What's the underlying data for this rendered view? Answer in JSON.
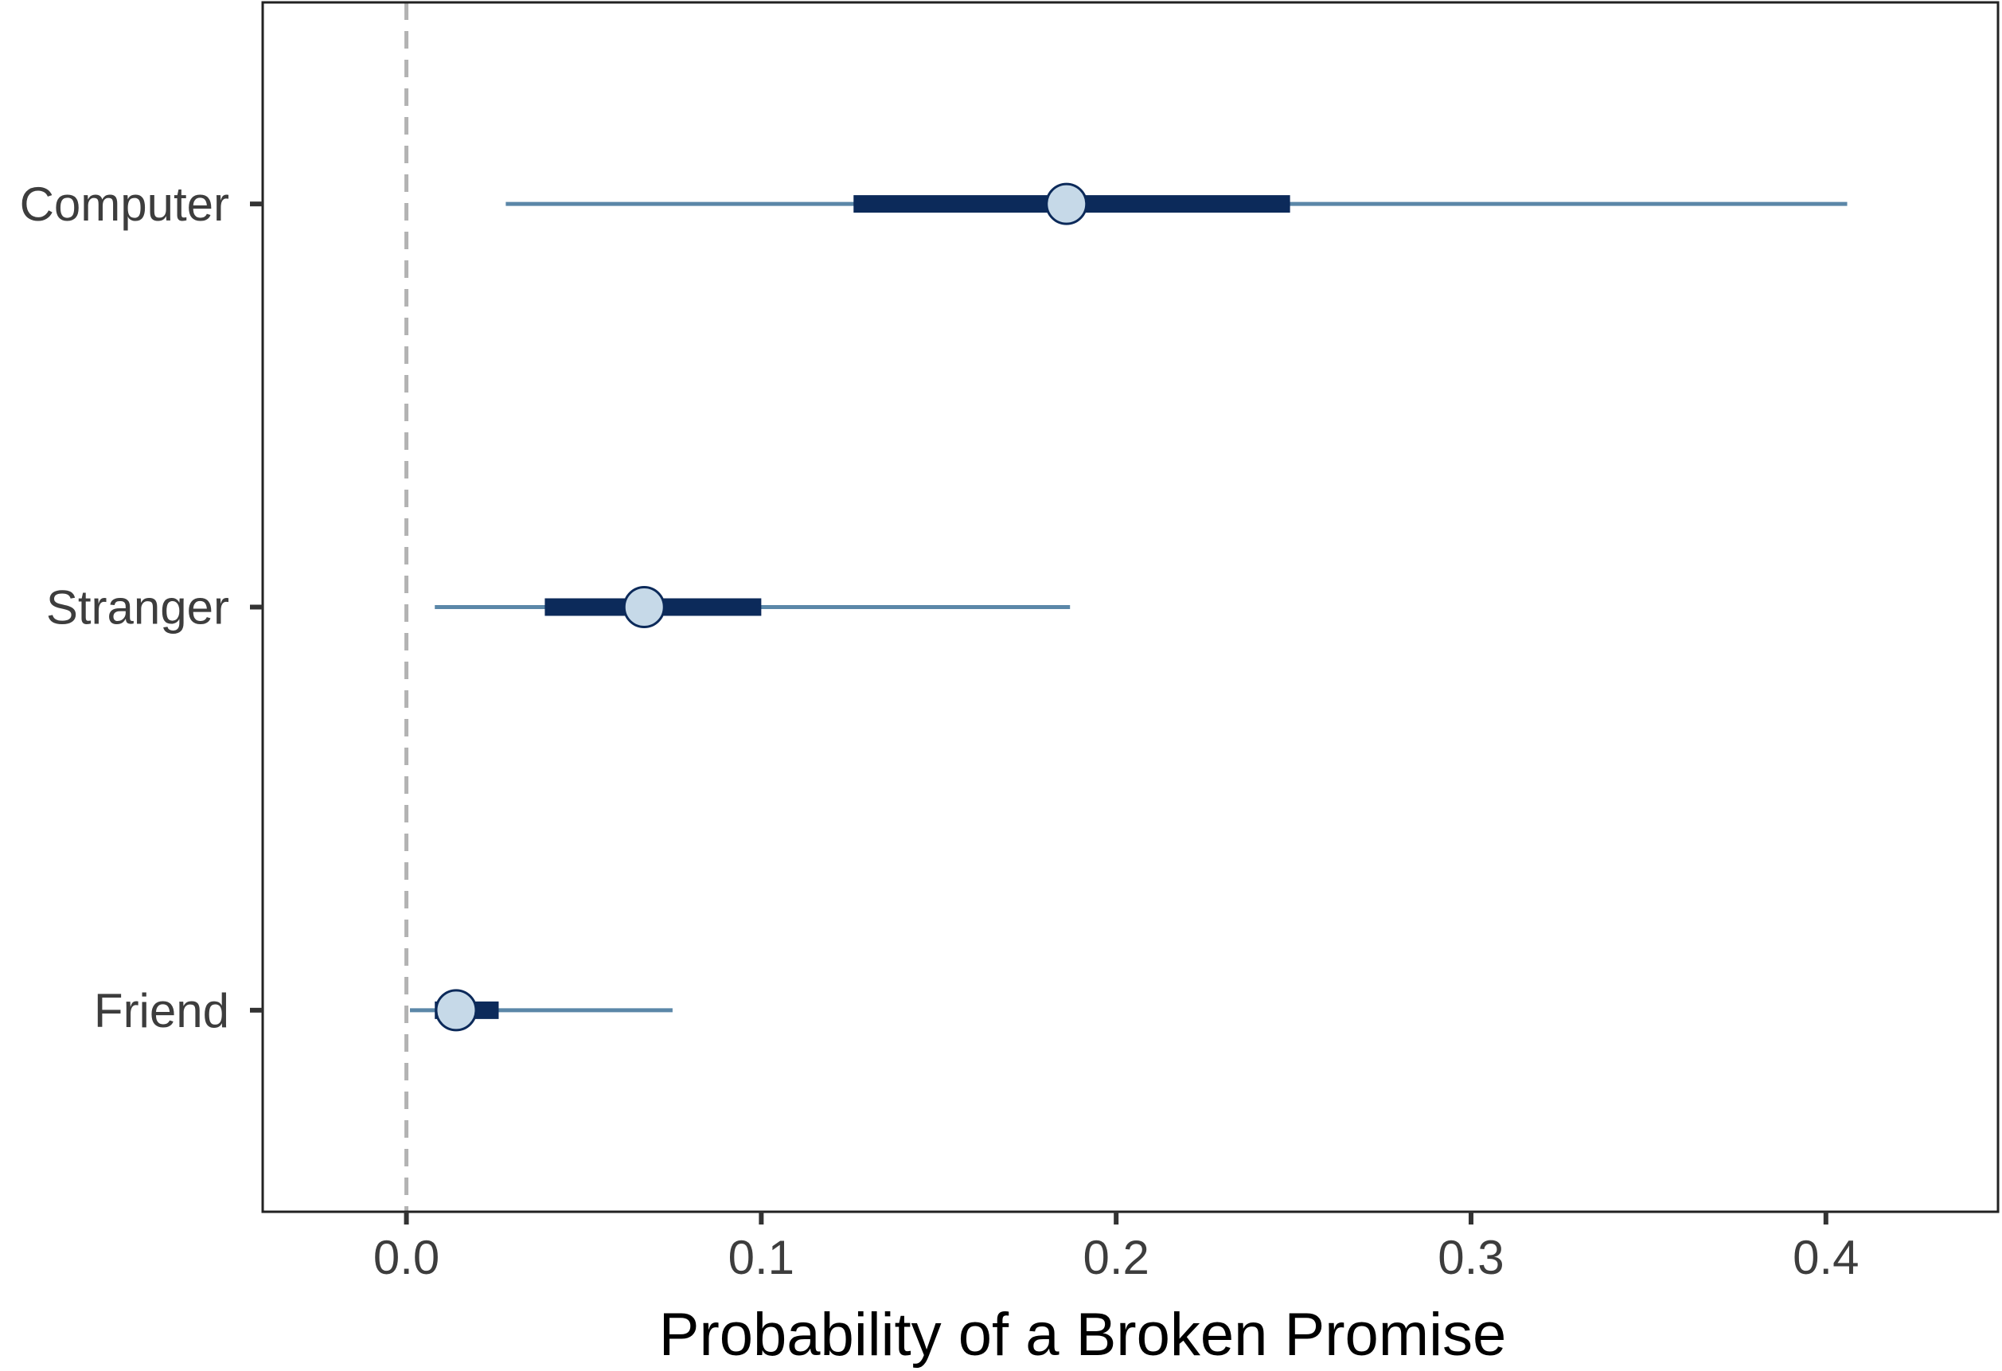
{
  "chart_data": {
    "type": "interval",
    "title": "",
    "xlabel": "Probability of a Broken Promise",
    "ylabel": "",
    "xlim": [
      -0.0405,
      0.4485
    ],
    "x_ticks": [
      0.0,
      0.1,
      0.2,
      0.3,
      0.4
    ],
    "x_tick_labels": [
      "0.0",
      "0.1",
      "0.2",
      "0.3",
      "0.4"
    ],
    "categories": [
      "Computer",
      "Stranger",
      "Friend"
    ],
    "reference_line": {
      "x": 0.0,
      "style": "dashed",
      "color": "#b3b3b3"
    },
    "grid": false,
    "legend": "none",
    "series": [
      {
        "category": "Computer",
        "point": 0.186,
        "inner": [
          0.126,
          0.249
        ],
        "outer": [
          0.028,
          0.406
        ]
      },
      {
        "category": "Stranger",
        "point": 0.067,
        "inner": [
          0.039,
          0.1
        ],
        "outer": [
          0.008,
          0.187
        ]
      },
      {
        "category": "Friend",
        "point": 0.014,
        "inner": [
          0.008,
          0.026
        ],
        "outer": [
          0.001,
          0.075
        ]
      }
    ],
    "colors": {
      "outer_interval": "#5b87a8",
      "inner_interval": "#0c2a5a",
      "point_fill": "#c6d9e8",
      "point_stroke": "#0c2a5a",
      "panel_border": "#222222",
      "axis": "#333333"
    }
  }
}
